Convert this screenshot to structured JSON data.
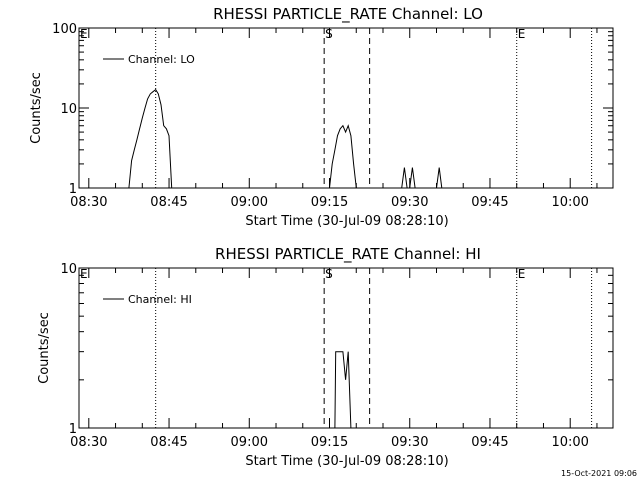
{
  "footer": {
    "date_stamp": "15-Oct-2021 09:06"
  },
  "chart_data": [
    {
      "type": "line",
      "title": "RHESSI PARTICLE_RATE Channel: LO",
      "xlabel": "Start Time (30-Jul-09 08:28:10)",
      "ylabel": "Counts/sec",
      "yscale": "log",
      "ylim": [
        1,
        100
      ],
      "yticks": [
        "1",
        "10",
        "100"
      ],
      "xlim": [
        "08:28:10",
        "10:08:00"
      ],
      "xticks": [
        "08:30",
        "08:45",
        "09:00",
        "09:15",
        "09:30",
        "09:45",
        "10:00"
      ],
      "legend": {
        "position": "top-left",
        "entries": [
          "Channel: LO"
        ]
      },
      "markers": [
        {
          "label": "E",
          "time": "08:28:10",
          "style": "none"
        },
        {
          "label": "",
          "time": "08:42:30",
          "style": "dotted"
        },
        {
          "label": "S",
          "time": "09:14:00",
          "style": "dashed"
        },
        {
          "label": "",
          "time": "09:22:30",
          "style": "dashed"
        },
        {
          "label": "E",
          "time": "09:50:00",
          "style": "dotted"
        },
        {
          "label": "",
          "time": "10:04:00",
          "style": "dotted"
        }
      ],
      "series": [
        {
          "name": "Channel: LO",
          "x": [
            "08:37:30",
            "08:38:00",
            "08:38:30",
            "08:39:00",
            "08:39:30",
            "08:40:00",
            "08:40:30",
            "08:41:00",
            "08:41:30",
            "08:42:00",
            "08:42:30",
            "08:43:00",
            "08:43:30",
            "08:44:00",
            "08:44:30",
            "08:45:00",
            "08:45:30",
            "08:46:00",
            "09:15:00",
            "09:15:30",
            "09:16:00",
            "09:16:30",
            "09:17:00",
            "09:17:30",
            "09:18:00",
            "09:18:30",
            "09:19:00",
            "09:19:30",
            "09:20:00",
            "09:28:30",
            "09:29:00",
            "09:29:30",
            "09:30:00",
            "09:30:30",
            "09:31:00",
            "09:31:30",
            "09:35:00",
            "09:35:30",
            "09:36:00"
          ],
          "y": [
            1,
            2.2,
            3,
            4,
            5.5,
            7.5,
            10,
            13,
            15,
            16,
            17,
            15,
            11,
            6,
            5.5,
            4.5,
            1,
            1,
            1,
            2,
            3,
            4.5,
            5.5,
            6,
            5,
            6,
            4.5,
            2,
            1,
            1,
            1.8,
            1,
            1,
            1.8,
            1,
            1,
            1,
            1.8,
            1
          ]
        }
      ]
    },
    {
      "type": "line",
      "title": "RHESSI PARTICLE_RATE Channel: HI",
      "xlabel": "Start Time (30-Jul-09 08:28:10)",
      "ylabel": "Counts/sec",
      "yscale": "log",
      "ylim": [
        1,
        10
      ],
      "yticks": [
        "1",
        "10"
      ],
      "xlim": [
        "08:28:10",
        "10:08:00"
      ],
      "xticks": [
        "08:30",
        "08:45",
        "09:00",
        "09:15",
        "09:30",
        "09:45",
        "10:00"
      ],
      "legend": {
        "position": "top-left",
        "entries": [
          "Channel: HI"
        ]
      },
      "markers": [
        {
          "label": "E",
          "time": "08:28:10",
          "style": "none"
        },
        {
          "label": "",
          "time": "08:42:30",
          "style": "dotted"
        },
        {
          "label": "S",
          "time": "09:14:00",
          "style": "dashed"
        },
        {
          "label": "",
          "time": "09:22:30",
          "style": "dashed"
        },
        {
          "label": "E",
          "time": "09:50:00",
          "style": "dotted"
        },
        {
          "label": "",
          "time": "10:04:00",
          "style": "dotted"
        }
      ],
      "series": [
        {
          "name": "Channel: HI",
          "x": [
            "09:16:00",
            "09:16:10",
            "09:16:20",
            "09:17:30",
            "09:18:00",
            "09:18:30",
            "09:19:00",
            "09:19:10"
          ],
          "y": [
            1,
            3,
            3,
            3,
            2,
            3,
            1,
            1
          ]
        }
      ]
    }
  ]
}
